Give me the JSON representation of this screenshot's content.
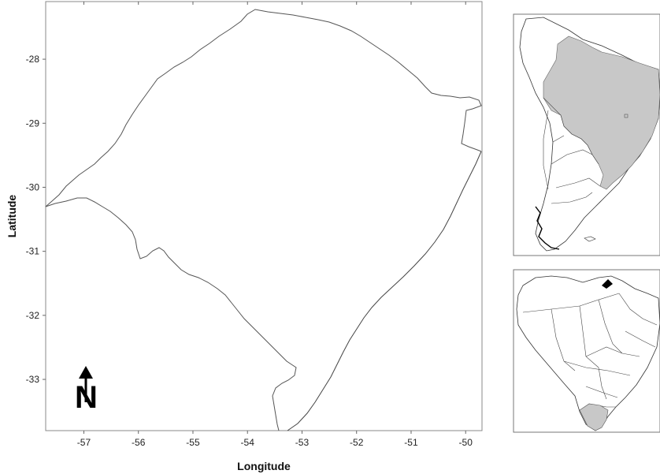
{
  "main_map": {
    "xlabel": "Longitude",
    "ylabel": "Latitude",
    "x_ticks": [
      "-57",
      "-56",
      "-55",
      "-54",
      "-53",
      "-52",
      "-51",
      "-50"
    ],
    "y_ticks": [
      "-28",
      "-29",
      "-30",
      "-31",
      "-32",
      "-33"
    ],
    "x_range": [
      -57.7,
      -49.7
    ],
    "y_range": [
      -33.8,
      -27.1
    ],
    "north_arrow_label": "N",
    "region": "Rio Grande do Sul outline"
  },
  "inset_south_america": {
    "highlight_color": "#c8c8c8",
    "highlighted": "Brazil"
  },
  "inset_brazil": {
    "highlight_color": "#c8c8c8",
    "highlighted": "Rio Grande do Sul"
  }
}
